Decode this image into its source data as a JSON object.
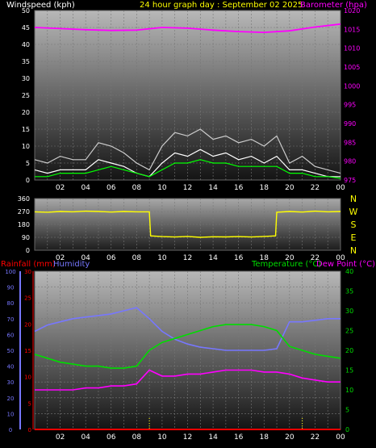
{
  "colors": {
    "background": "#000000",
    "axis_text": "#ffffff",
    "windspeed_label": "#ffffff",
    "title": "#ffff00",
    "barometer": "#ff00ff",
    "wind_speed": "#ffffff",
    "wind_gust": "#cccccc",
    "wind_avg": "#00ff00",
    "direction": "#ffff00",
    "rainfall": "#ff0000",
    "humidity": "#7777ff",
    "temperature": "#00dd00",
    "dew_point": "#ff00ff"
  },
  "chart_data": [
    {
      "type": "line",
      "title": "24 hour graph day : September 02 2025",
      "ylabel_left": "Windspeed (kph)",
      "ylabel_right": "Barometer (hpa)",
      "x_ticks": [
        "02",
        "04",
        "06",
        "08",
        "10",
        "12",
        "14",
        "16",
        "18",
        "20",
        "22",
        "00"
      ],
      "ylim_left": [
        0,
        50
      ],
      "yticks_left": [
        0,
        5,
        10,
        15,
        20,
        25,
        30,
        35,
        40,
        45,
        50
      ],
      "ylim_right": [
        975,
        1020
      ],
      "yticks_right": [
        975,
        980,
        985,
        990,
        995,
        1000,
        1005,
        1010,
        1015,
        1020
      ],
      "grid": true,
      "series": [
        {
          "name": "Barometer",
          "axis": "right",
          "x": [
            0,
            2,
            4,
            6,
            8,
            10,
            12,
            14,
            16,
            18,
            20,
            22,
            24
          ],
          "values": [
            1015.5,
            1015.2,
            1014.9,
            1014.7,
            1014.8,
            1015.5,
            1015.3,
            1014.8,
            1014.4,
            1014.2,
            1014.6,
            1015.6,
            1016.4
          ]
        },
        {
          "name": "Wind gust",
          "axis": "left",
          "x": [
            0,
            1,
            2,
            3,
            4,
            5,
            6,
            7,
            8,
            9,
            10,
            11,
            12,
            13,
            14,
            15,
            16,
            17,
            18,
            19,
            20,
            21,
            22,
            23,
            24
          ],
          "values": [
            6,
            5,
            7,
            6,
            6,
            11,
            10,
            8,
            5,
            3,
            10,
            14,
            13,
            15,
            12,
            13,
            11,
            12,
            10,
            13,
            5,
            7,
            4,
            3,
            2
          ]
        },
        {
          "name": "Wind speed",
          "axis": "left",
          "x": [
            0,
            1,
            2,
            3,
            4,
            5,
            6,
            7,
            8,
            9,
            10,
            11,
            12,
            13,
            14,
            15,
            16,
            17,
            18,
            19,
            20,
            21,
            22,
            23,
            24
          ],
          "values": [
            3,
            2,
            3,
            3,
            3,
            6,
            5,
            4,
            2,
            1,
            5,
            8,
            7,
            9,
            7,
            8,
            6,
            7,
            5,
            7,
            3,
            3,
            2,
            1,
            1
          ]
        },
        {
          "name": "Wind average",
          "axis": "left",
          "x": [
            0,
            1,
            2,
            3,
            4,
            5,
            6,
            7,
            8,
            9,
            10,
            11,
            12,
            13,
            14,
            15,
            16,
            17,
            18,
            19,
            20,
            21,
            22,
            23,
            24
          ],
          "values": [
            1,
            1,
            2,
            2,
            2,
            3,
            4,
            3,
            2,
            1,
            3,
            5,
            5,
            6,
            5,
            5,
            4,
            4,
            4,
            4,
            2,
            2,
            1,
            1,
            0.5
          ]
        }
      ]
    },
    {
      "type": "scatter",
      "title": "",
      "x_ticks": [
        "02",
        "04",
        "06",
        "08",
        "10",
        "12",
        "14",
        "16",
        "18",
        "20",
        "22",
        "00"
      ],
      "ylim": [
        0,
        360
      ],
      "yticks": [
        0,
        90,
        180,
        270,
        360
      ],
      "direction_labels": [
        "N",
        "W",
        "S",
        "E",
        "N"
      ],
      "grid": true,
      "series": [
        {
          "name": "Wind direction",
          "x": [
            0,
            1,
            2,
            3,
            4,
            5,
            6,
            7,
            8,
            9,
            9.1,
            10,
            11,
            12,
            13,
            14,
            15,
            16,
            17,
            18,
            18.9,
            19,
            20,
            21,
            22,
            23,
            24
          ],
          "values": [
            268,
            265,
            270,
            268,
            272,
            270,
            266,
            270,
            268,
            268,
            100,
            95,
            92,
            96,
            90,
            94,
            93,
            95,
            92,
            96,
            100,
            265,
            270,
            266,
            272,
            268,
            270
          ]
        }
      ]
    },
    {
      "type": "line",
      "title": "",
      "labels_top": [
        "Rainfall (mm)",
        "Humidity",
        "Temperature (°C)",
        "Dew Point (°C)"
      ],
      "x_ticks": [
        "02",
        "04",
        "06",
        "08",
        "10",
        "12",
        "14",
        "16",
        "18",
        "20",
        "22",
        "00"
      ],
      "ylim_humidity": [
        0,
        100
      ],
      "yticks_humidity": [
        0,
        10,
        20,
        30,
        40,
        50,
        60,
        70,
        80,
        90,
        100
      ],
      "ylim_rain": [
        0,
        30
      ],
      "yticks_rain": [
        0,
        5,
        10,
        15,
        20,
        25,
        30
      ],
      "ylim_temp": [
        0,
        40
      ],
      "yticks_temp": [
        0,
        5,
        10,
        15,
        20,
        25,
        30,
        35,
        40
      ],
      "grid": true,
      "series": [
        {
          "name": "Humidity",
          "axis": "humidity",
          "x": [
            0,
            1,
            2,
            3,
            4,
            5,
            6,
            7,
            8,
            9,
            10,
            11,
            12,
            13,
            14,
            15,
            16,
            17,
            18,
            19,
            20,
            21,
            22,
            23,
            24
          ],
          "values": [
            62,
            66,
            68,
            70,
            71,
            72,
            73,
            75,
            77,
            70,
            62,
            57,
            54,
            52,
            51,
            50,
            50,
            50,
            50,
            51,
            68,
            68,
            69,
            70,
            70
          ]
        },
        {
          "name": "Temperature",
          "axis": "temp",
          "x": [
            0,
            1,
            2,
            3,
            4,
            5,
            6,
            7,
            8,
            9,
            10,
            11,
            12,
            13,
            14,
            15,
            16,
            17,
            18,
            19,
            20,
            21,
            22,
            23,
            24
          ],
          "values": [
            19,
            18,
            17,
            16.5,
            16,
            16,
            15.5,
            15.5,
            16,
            20,
            22,
            23,
            24,
            25,
            26,
            26.5,
            26.5,
            26.5,
            26,
            25,
            21,
            20,
            19,
            18.5,
            18
          ]
        },
        {
          "name": "Dew Point",
          "axis": "temp",
          "x": [
            0,
            1,
            2,
            3,
            4,
            5,
            6,
            7,
            8,
            9,
            10,
            11,
            12,
            13,
            14,
            15,
            16,
            17,
            18,
            19,
            20,
            21,
            22,
            23,
            24
          ],
          "values": [
            10,
            10,
            10,
            10,
            10.5,
            10.5,
            11,
            11,
            11.5,
            15,
            13.5,
            13.5,
            14,
            14,
            14.5,
            15,
            15,
            15,
            14.5,
            14.5,
            14,
            13,
            12.5,
            12,
            12
          ]
        },
        {
          "name": "Rainfall",
          "axis": "rain",
          "x": [
            0,
            24
          ],
          "values": [
            0,
            0
          ]
        }
      ]
    }
  ]
}
